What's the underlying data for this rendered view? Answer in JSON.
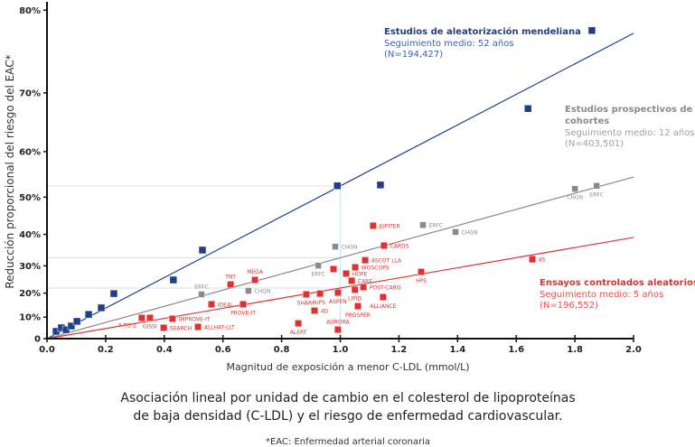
{
  "chart_data": {
    "type": "scatter",
    "ylabel": "Reducción proporcional del riesgo del EAC*",
    "xlabel": "Magnitud de exposición a menor C-LDL (mmol/L)",
    "caption_line1": "Asociación lineal por unidad de cambio en el colesterol de lipoproteínas",
    "caption_line2": "de baja densidad (C-LDL) y el riesgo de enfermedad cardiovascular.",
    "footnote": "*EAC: Enfermedad arterial coronaria",
    "xlim": [
      0,
      2.0
    ],
    "ylim": [
      0,
      80
    ],
    "y_scale": "log relative risk",
    "xticks": [
      "0.0",
      "0.2",
      "0.4",
      "0.6",
      "0.8",
      "1.0",
      "1.2",
      "1.4",
      "1.6",
      "1.8",
      "2.0"
    ],
    "yticks": [
      {
        "value": 0,
        "label": "0"
      },
      {
        "value": 10,
        "label": "10%"
      },
      {
        "value": 20,
        "label": "20%"
      },
      {
        "value": 30,
        "label": "30%"
      },
      {
        "value": 40,
        "label": "40%"
      },
      {
        "value": 50,
        "label": "50%"
      },
      {
        "value": 60,
        "label": "60%"
      },
      {
        "value": 70,
        "label": "70%"
      },
      {
        "value": 80,
        "label": "80%"
      }
    ],
    "series": [
      {
        "name": "Estudios de aleatorización mendeliana",
        "followup": "Seguimiento medio: 52 años",
        "n": "(N=194,427)",
        "color": "#1f3f8a",
        "fit_at_2": 77.6,
        "points": [
          {
            "x": 0.031,
            "y": 3.5
          },
          {
            "x": 0.049,
            "y": 5.2
          },
          {
            "x": 0.065,
            "y": 4.3
          },
          {
            "x": 0.083,
            "y": 6.0
          },
          {
            "x": 0.102,
            "y": 8.1
          },
          {
            "x": 0.142,
            "y": 11.2
          },
          {
            "x": 0.185,
            "y": 14.0
          },
          {
            "x": 0.228,
            "y": 19.8
          },
          {
            "x": 0.431,
            "y": 25.0
          },
          {
            "x": 0.53,
            "y": 35.2
          },
          {
            "x": 0.99,
            "y": 52.7
          },
          {
            "x": 1.137,
            "y": 52.9
          },
          {
            "x": 1.64,
            "y": 67.6
          },
          {
            "x": 1.858,
            "y": 77.9
          }
        ]
      },
      {
        "name": "Estudios prospectivos de cohortes",
        "name_line1": "Estudios prospectivos de",
        "name_line2": "cohortes",
        "followup": "Seguimiento medio: 12 años",
        "n": "(N=403,501)",
        "color": "#8a8a8a",
        "fit_at_2": 54.7,
        "points": [
          {
            "x": 0.527,
            "y": 19.5,
            "label": "ERFC",
            "pos": "above"
          },
          {
            "x": 0.687,
            "y": 20.9,
            "label": "CHGN",
            "pos": "right"
          },
          {
            "x": 0.925,
            "y": 30.1,
            "label": "ERFC",
            "pos": "below"
          },
          {
            "x": 0.983,
            "y": 36.3,
            "label": "CHGN",
            "pos": "right"
          },
          {
            "x": 1.282,
            "y": 42.7,
            "label": "ERFC",
            "pos": "right"
          },
          {
            "x": 1.393,
            "y": 40.7,
            "label": "CHGN",
            "pos": "right"
          },
          {
            "x": 1.8,
            "y": 52.0,
            "label": "CHGN",
            "pos": "below"
          },
          {
            "x": 1.874,
            "y": 52.7,
            "label": "ERFC",
            "pos": "below"
          }
        ]
      },
      {
        "name": "Ensayos controlados aleatorios",
        "followup": "Seguimiento medio: 5 años",
        "n": "(N=196,552)",
        "color": "#e03030",
        "fit_at_2": 39.1,
        "points": [
          {
            "x": 0.323,
            "y": 9.7,
            "label": "A TO Z",
            "pos": "belowleft"
          },
          {
            "x": 0.351,
            "y": 9.7,
            "label": "GISSI",
            "pos": "below"
          },
          {
            "x": 0.398,
            "y": 5.2,
            "label": "SEARCH",
            "pos": "right"
          },
          {
            "x": 0.428,
            "y": 9.3,
            "label": "IMPROVE-IT",
            "pos": "right"
          },
          {
            "x": 0.515,
            "y": 5.6,
            "label": "ALLHAT-LLT",
            "pos": "right"
          },
          {
            "x": 0.561,
            "y": 15.5,
            "label": "IDEAL",
            "pos": "right"
          },
          {
            "x": 0.669,
            "y": 15.5,
            "label": "PROVE-IT",
            "pos": "below"
          },
          {
            "x": 0.626,
            "y": 23.3,
            "label": "TNT",
            "pos": "above"
          },
          {
            "x": 0.709,
            "y": 25.0,
            "label": "MEGA",
            "pos": "above"
          },
          {
            "x": 1.112,
            "y": 42.5,
            "label": "JUPITER",
            "pos": "right"
          },
          {
            "x": 1.149,
            "y": 36.6,
            "label": "CARDS",
            "pos": "right"
          },
          {
            "x": 1.085,
            "y": 31.9,
            "label": "ASCOT LLA",
            "pos": "right"
          },
          {
            "x": 1.051,
            "y": 29.5,
            "label": "WOSCOPS",
            "pos": "right"
          },
          {
            "x": 0.977,
            "y": 28.9
          },
          {
            "x": 1.02,
            "y": 27.3,
            "label": "HOPE",
            "pos": "right"
          },
          {
            "x": 1.039,
            "y": 24.7,
            "label": "CARE",
            "pos": "right"
          },
          {
            "x": 1.079,
            "y": 22.3,
            "label": "POST-CABG",
            "pos": "right"
          },
          {
            "x": 1.05,
            "y": 21.3,
            "label": "LIPID",
            "pos": "below"
          },
          {
            "x": 0.992,
            "y": 20.2,
            "label": "ASPEN",
            "pos": "below"
          },
          {
            "x": 0.931,
            "y": 19.8,
            "label": "UPS",
            "pos": "below"
          },
          {
            "x": 0.884,
            "y": 19.5,
            "label": "SHARP",
            "pos": "below"
          },
          {
            "x": 1.146,
            "y": 18.4,
            "label": "ALLIANCE",
            "pos": "below"
          },
          {
            "x": 1.06,
            "y": 14.7,
            "label": "PROSPER",
            "pos": "below"
          },
          {
            "x": 0.912,
            "y": 12.8,
            "label": "4D",
            "pos": "right"
          },
          {
            "x": 0.857,
            "y": 7.2,
            "label": "ALERT",
            "pos": "below"
          },
          {
            "x": 0.992,
            "y": 4.3,
            "label": "AURORA",
            "pos": "above"
          },
          {
            "x": 1.276,
            "y": 27.9,
            "label": "HPS",
            "pos": "below"
          },
          {
            "x": 1.655,
            "y": 32.2,
            "label": "4S",
            "pos": "right"
          }
        ]
      }
    ],
    "reference_x": 1.0,
    "reference_color": "#cfe3ee"
  }
}
